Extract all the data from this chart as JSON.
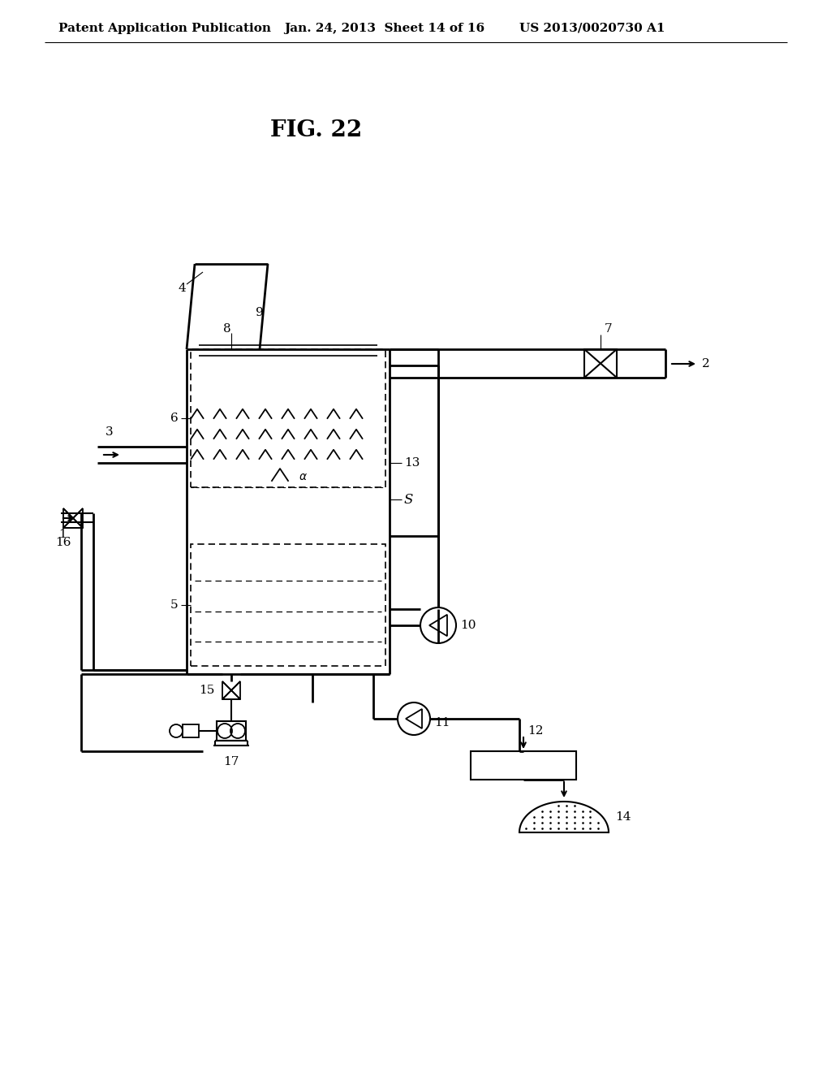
{
  "title": "FIG. 22",
  "header_left": "Patent Application Publication",
  "header_mid": "Jan. 24, 2013  Sheet 14 of 16",
  "header_right": "US 2013/0020730 A1",
  "bg_color": "#ffffff",
  "line_color": "#000000",
  "fig_title_fontsize": 20,
  "header_fontsize": 11,
  "label_fontsize": 11
}
